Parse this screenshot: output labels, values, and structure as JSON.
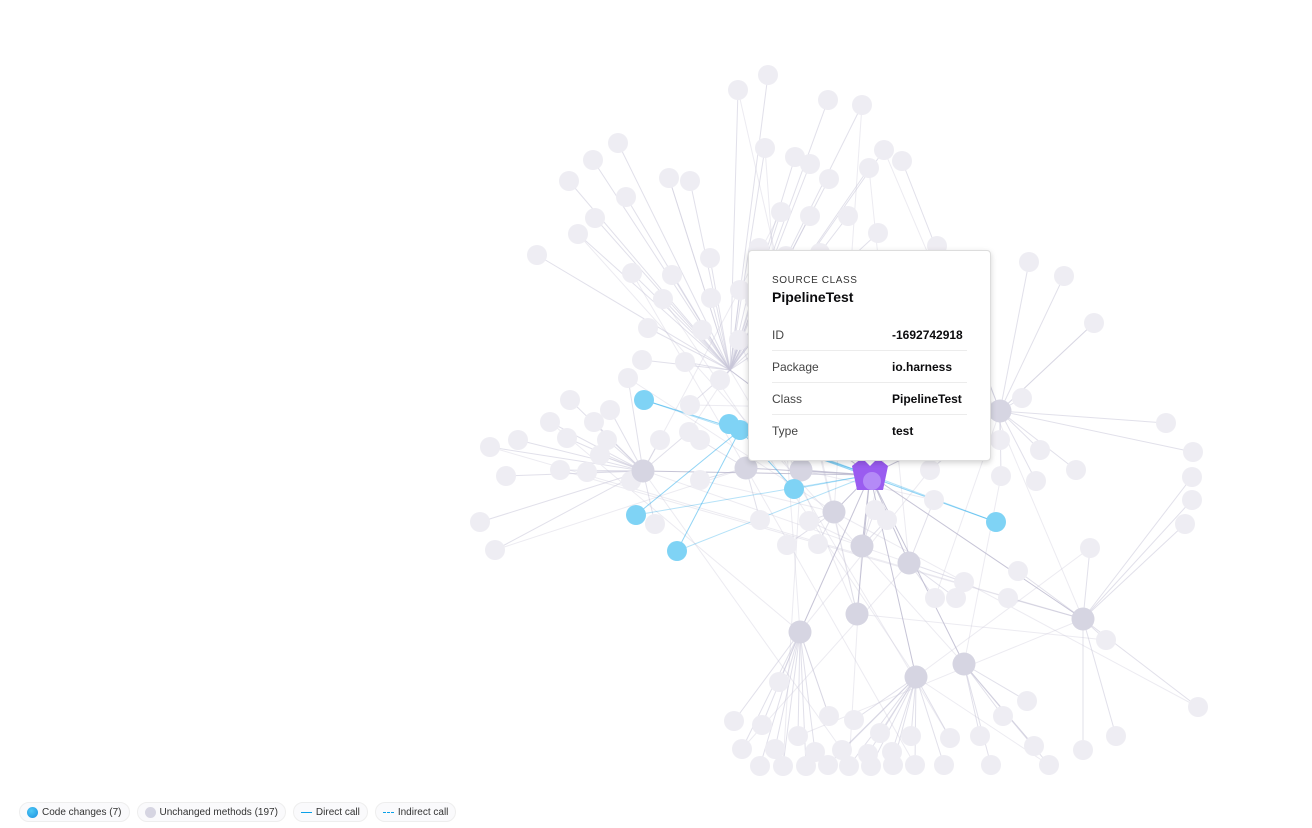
{
  "tooltip": {
    "kicker": "SOURCE CLASS",
    "title": "PipelineTest",
    "rows": [
      {
        "label": "ID",
        "value": "-1692742918"
      },
      {
        "label": "Package",
        "value": "io.harness"
      },
      {
        "label": "Class",
        "value": "PipelineTest"
      },
      {
        "label": "Type",
        "value": "test"
      }
    ]
  },
  "legend": {
    "code_changes": "Code changes (7)",
    "unchanged": "Unchanged methods (197)",
    "direct": "Direct call",
    "indirect": "Indirect call"
  },
  "colors": {
    "changed": "#7fd3f5",
    "unchanged": "#d6d5e2",
    "faded": "#eeedf3",
    "source": "#9a5cf0",
    "direct_edge": "#0aa0e8"
  }
}
